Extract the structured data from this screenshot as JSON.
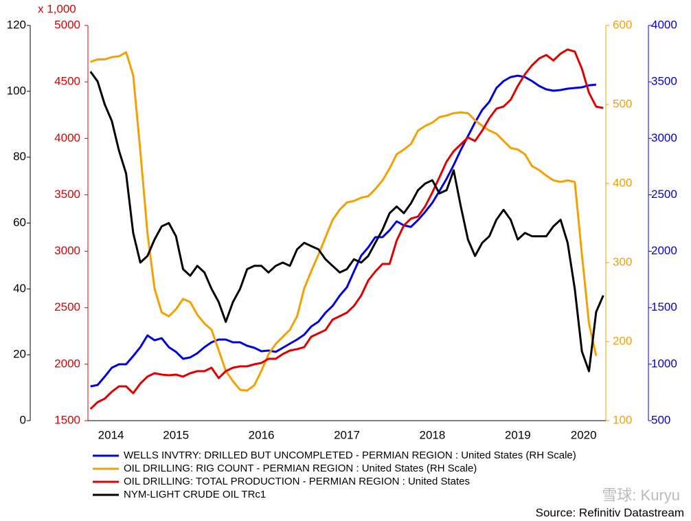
{
  "chart_data": {
    "type": "line",
    "y2_unit_label": "x 1,000",
    "source": "Source: Refinitiv Datastream",
    "watermark": "雪球: Kuryu",
    "xlim": [
      2014.47,
      2020.53
    ],
    "xticks": [
      {
        "value": 2014.74,
        "label": "2014"
      },
      {
        "value": 2015.5,
        "label": "2015"
      },
      {
        "value": 2016.5,
        "label": "2016"
      },
      {
        "value": 2017.5,
        "label": "2017"
      },
      {
        "value": 2018.5,
        "label": "2018"
      },
      {
        "value": 2019.5,
        "label": "2019"
      },
      {
        "value": 2020.27,
        "label": "2020"
      }
    ],
    "ylim": [
      0,
      120
    ],
    "yticks": [
      0,
      20,
      40,
      60,
      80,
      100,
      120
    ],
    "y_color": "#000000",
    "y2lim": [
      1500,
      5000
    ],
    "y2ticks": [
      1500,
      2000,
      2500,
      3000,
      3500,
      4000,
      4500,
      5000
    ],
    "y2_color": "#e00000",
    "y3lim": [
      100,
      600
    ],
    "y3ticks": [
      100,
      200,
      300,
      400,
      500,
      600
    ],
    "y3_color": "#f5a000",
    "y4lim": [
      500,
      4000
    ],
    "y4ticks": [
      500,
      1000,
      1500,
      2000,
      2500,
      3000,
      3500,
      4000
    ],
    "y4_color": "#0000e0",
    "x": [
      2014.5,
      2014.583,
      2014.667,
      2014.75,
      2014.833,
      2014.917,
      2015.0,
      2015.083,
      2015.167,
      2015.25,
      2015.333,
      2015.417,
      2015.5,
      2015.583,
      2015.667,
      2015.75,
      2015.833,
      2015.917,
      2016.0,
      2016.083,
      2016.167,
      2016.25,
      2016.333,
      2016.417,
      2016.5,
      2016.583,
      2016.667,
      2016.75,
      2016.833,
      2016.917,
      2017.0,
      2017.083,
      2017.167,
      2017.25,
      2017.333,
      2017.417,
      2017.5,
      2017.583,
      2017.667,
      2017.75,
      2017.833,
      2017.917,
      2018.0,
      2018.083,
      2018.167,
      2018.25,
      2018.333,
      2018.417,
      2018.5,
      2018.583,
      2018.667,
      2018.75,
      2018.833,
      2018.917,
      2019.0,
      2019.083,
      2019.167,
      2019.25,
      2019.333,
      2019.417,
      2019.5,
      2019.583,
      2019.667,
      2019.75,
      2019.833,
      2019.917,
      2020.0,
      2020.083,
      2020.167,
      2020.25,
      2020.333,
      2020.417,
      2020.5
    ],
    "series": [
      {
        "name": "WELLS INVTRY: DRILLED BUT UNCOMPLETED - PERMIAN REGION : United States (RH Scale)",
        "color": "#0000e0",
        "axis": "y4",
        "values": [
          804,
          816,
          890,
          969,
          999,
          999,
          1072,
          1151,
          1255,
          1212,
          1230,
          1151,
          1109,
          1048,
          1060,
          1097,
          1151,
          1194,
          1218,
          1218,
          1194,
          1194,
          1163,
          1145,
          1115,
          1121,
          1109,
          1145,
          1182,
          1218,
          1261,
          1334,
          1376,
          1456,
          1516,
          1608,
          1681,
          1821,
          1961,
          2034,
          2125,
          2125,
          2186,
          2265,
          2229,
          2216,
          2277,
          2350,
          2429,
          2533,
          2642,
          2764,
          2898,
          3020,
          3141,
          3251,
          3324,
          3446,
          3507,
          3543,
          3555,
          3543,
          3507,
          3464,
          3434,
          3422,
          3428,
          3440,
          3446,
          3452,
          3470,
          3476,
          null
        ]
      },
      {
        "name": "OIL DRILLING: RIG COUNT - PERMIAN REGION : United States (RH Scale)",
        "color": "#f5a000",
        "axis": "y3",
        "values": [
          554,
          557,
          557,
          560,
          561,
          566,
          537,
          441,
          337,
          267,
          237,
          232,
          241,
          254,
          250,
          234,
          223,
          215,
          189,
          163,
          150,
          139,
          138,
          145,
          163,
          184,
          197,
          206,
          215,
          232,
          267,
          289,
          310,
          332,
          354,
          367,
          376,
          378,
          382,
          384,
          393,
          404,
          419,
          437,
          443,
          450,
          467,
          473,
          477,
          484,
          486,
          489,
          490,
          489,
          480,
          473,
          467,
          463,
          454,
          445,
          443,
          437,
          422,
          417,
          410,
          404,
          402,
          404,
          402,
          310,
          223,
          182,
          null
        ]
      },
      {
        "name": "OIL DRILLING: TOTAL PRODUCTION - PERMIAN REGION : United States",
        "color": "#e00000",
        "axis": "y2",
        "values": [
          1603,
          1664,
          1695,
          1756,
          1804,
          1804,
          1743,
          1829,
          1890,
          1920,
          1908,
          1902,
          1908,
          1890,
          1920,
          1938,
          1938,
          1969,
          1877,
          1938,
          1969,
          1981,
          1981,
          1999,
          2011,
          2048,
          2048,
          2090,
          2121,
          2133,
          2151,
          2243,
          2273,
          2303,
          2395,
          2425,
          2456,
          2516,
          2608,
          2742,
          2821,
          2888,
          2888,
          3095,
          3229,
          3289,
          3308,
          3399,
          3521,
          3655,
          3795,
          3886,
          3947,
          4008,
          3977,
          4068,
          4178,
          4263,
          4281,
          4342,
          4464,
          4567,
          4647,
          4708,
          4738,
          4690,
          4750,
          4787,
          4768,
          4616,
          4403,
          4281,
          4269
        ]
      },
      {
        "name": "NYM-LIGHT CRUDE OIL TRc1",
        "color": "#000000",
        "axis": "y",
        "values": [
          106,
          103,
          96,
          91,
          82,
          75,
          57,
          48,
          50,
          55,
          59,
          60,
          56,
          46,
          44,
          47,
          45,
          40,
          36,
          30,
          36,
          40,
          46,
          47,
          47,
          45,
          47,
          48,
          47,
          52,
          54,
          53,
          52,
          49,
          47,
          45,
          46,
          49,
          48,
          50,
          54,
          58,
          63,
          65,
          63,
          66,
          70,
          72,
          73,
          69,
          70,
          76,
          65,
          55,
          50,
          54,
          56,
          61,
          64,
          61,
          55,
          57,
          56,
          56,
          56,
          59,
          61,
          54,
          40,
          21,
          15,
          33,
          38
        ]
      }
    ]
  }
}
